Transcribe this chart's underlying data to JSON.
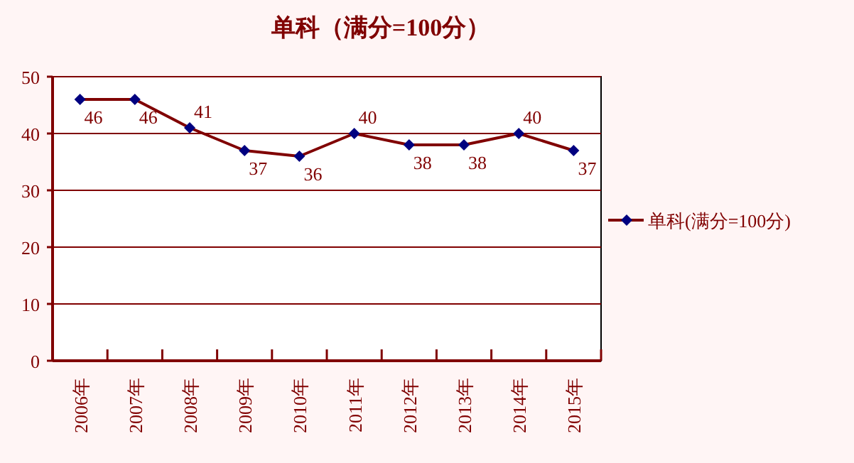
{
  "chart_data": {
    "type": "line",
    "title": "单科（满分=100分）",
    "categories": [
      "2006年",
      "2007年",
      "2008年",
      "2009年",
      "2010年",
      "2011年",
      "2012年",
      "2013年",
      "2014年",
      "2015年"
    ],
    "series": [
      {
        "name": "单科(满分=100分)",
        "color": "#800000",
        "values": [
          46,
          46,
          41,
          37,
          36,
          40,
          38,
          38,
          40,
          37
        ]
      }
    ],
    "ylim": [
      0,
      50
    ],
    "yticks": [
      0,
      10,
      20,
      30,
      40,
      50
    ],
    "grid": "y",
    "legend": "right",
    "marker": "diamond",
    "line_style": "solid",
    "data_labels": true
  }
}
